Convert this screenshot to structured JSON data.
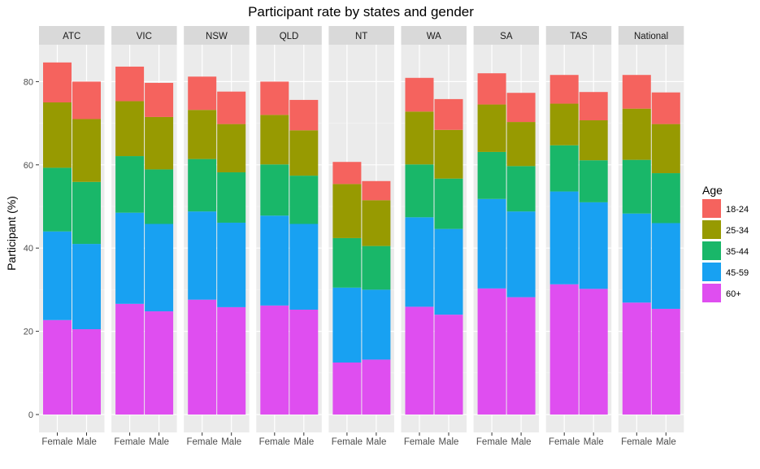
{
  "chart_data": {
    "type": "bar",
    "stacked": true,
    "faceted": true,
    "title": "Participant rate by states and gender",
    "xlabel": "",
    "ylabel": "Participant (%)",
    "ylim": [
      0,
      90
    ],
    "yticks": [
      0,
      20,
      40,
      60,
      80
    ],
    "grid": true,
    "legend_position": "right",
    "legend_title": "Age",
    "categories": [
      "Female",
      "Male"
    ],
    "series": [
      {
        "name": "60+",
        "color": "#df4ef0"
      },
      {
        "name": "45-59",
        "color": "#18a1f2"
      },
      {
        "name": "35-44",
        "color": "#19b769"
      },
      {
        "name": "25-34",
        "color": "#979a01"
      },
      {
        "name": "18-24",
        "color": "#f5635e"
      }
    ],
    "facets": [
      {
        "label": "ATC",
        "bars": [
          {
            "category": "Female",
            "values": [
              22.7,
              21.3,
              15.3,
              15.7,
              9.6
            ]
          },
          {
            "category": "Male",
            "values": [
              20.5,
              20.5,
              14.9,
              15.1,
              9.0
            ]
          }
        ]
      },
      {
        "label": "VIC",
        "bars": [
          {
            "category": "Female",
            "values": [
              26.6,
              21.9,
              13.6,
              13.2,
              8.3
            ]
          },
          {
            "category": "Male",
            "values": [
              24.8,
              21.0,
              13.1,
              12.6,
              8.2
            ]
          }
        ]
      },
      {
        "label": "NSW",
        "bars": [
          {
            "category": "Female",
            "values": [
              27.6,
              21.2,
              12.6,
              11.8,
              8.0
            ]
          },
          {
            "category": "Male",
            "values": [
              25.8,
              20.3,
              12.1,
              11.6,
              7.8
            ]
          }
        ]
      },
      {
        "label": "QLD",
        "bars": [
          {
            "category": "Female",
            "values": [
              26.2,
              21.6,
              12.3,
              11.9,
              8.0
            ]
          },
          {
            "category": "Male",
            "values": [
              25.2,
              20.6,
              11.6,
              10.9,
              7.3
            ]
          }
        ]
      },
      {
        "label": "NT",
        "bars": [
          {
            "category": "Female",
            "values": [
              12.5,
              18.0,
              11.9,
              13.0,
              5.3
            ]
          },
          {
            "category": "Male",
            "values": [
              13.2,
              16.8,
              10.5,
              11.0,
              4.6
            ]
          }
        ]
      },
      {
        "label": "WA",
        "bars": [
          {
            "category": "Female",
            "values": [
              25.9,
              21.5,
              12.7,
              12.7,
              8.1
            ]
          },
          {
            "category": "Male",
            "values": [
              24.0,
              20.6,
              12.1,
              11.7,
              7.4
            ]
          }
        ]
      },
      {
        "label": "SA",
        "bars": [
          {
            "category": "Female",
            "values": [
              30.3,
              21.5,
              11.3,
              11.4,
              7.5
            ]
          },
          {
            "category": "Male",
            "values": [
              28.2,
              20.6,
              10.9,
              10.6,
              7.0
            ]
          }
        ]
      },
      {
        "label": "TAS",
        "bars": [
          {
            "category": "Female",
            "values": [
              31.3,
              22.3,
              11.1,
              10.0,
              6.9
            ]
          },
          {
            "category": "Male",
            "values": [
              30.2,
              20.8,
              10.1,
              9.6,
              6.8
            ]
          }
        ]
      },
      {
        "label": "National",
        "bars": [
          {
            "category": "Female",
            "values": [
              26.9,
              21.4,
              12.9,
              12.3,
              8.1
            ]
          },
          {
            "category": "Male",
            "values": [
              25.4,
              20.6,
              12.0,
              11.8,
              7.6
            ]
          }
        ]
      }
    ]
  }
}
